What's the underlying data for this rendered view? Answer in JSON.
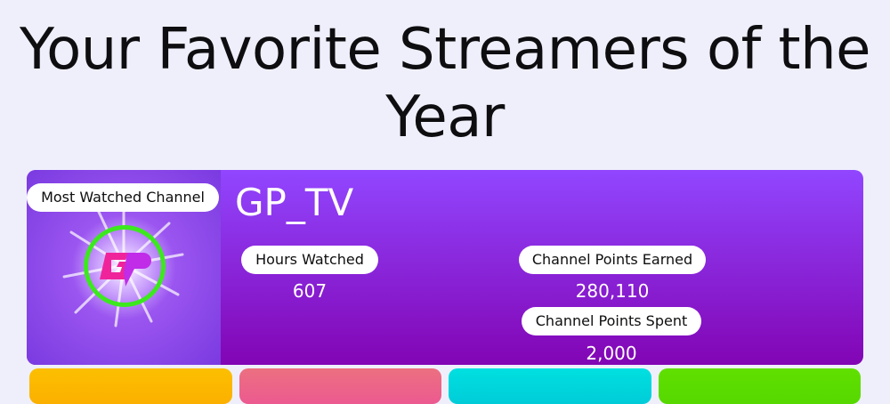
{
  "page_title": "Your Favorite Streamers of the Year",
  "featured": {
    "badge": "Most Watched Channel",
    "logo_icon": "gp-tv-logo-icon",
    "channel_name": "GP_TV",
    "stats": [
      {
        "label": "Hours Watched",
        "value": "607"
      },
      {
        "label": "Channel Points Earned",
        "value": "280,110"
      },
      {
        "label": "Channel Points Spent",
        "value": "2,000"
      }
    ]
  },
  "colors": {
    "card_top": "#9146ff",
    "card_bottom": "#8205b4",
    "tiles": [
      "#fcbf00",
      "#ec6a86",
      "#00dde0",
      "#5fe000"
    ]
  }
}
